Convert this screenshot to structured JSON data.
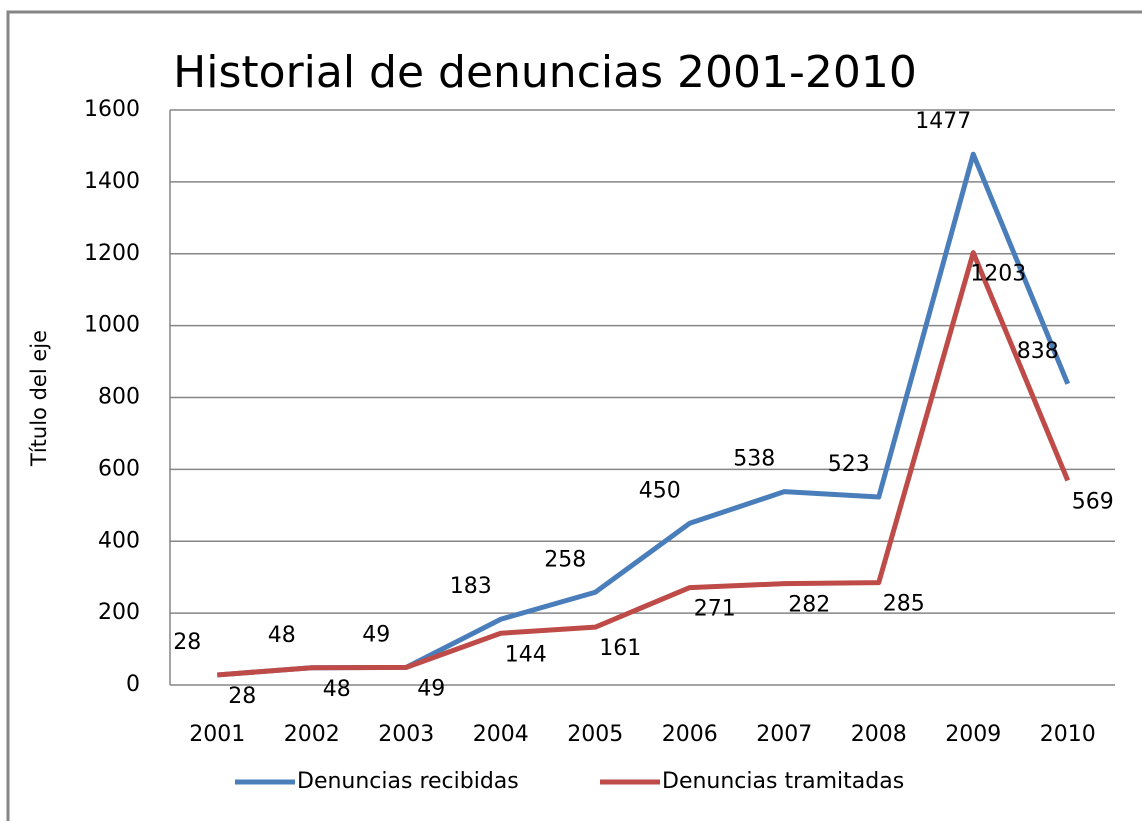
{
  "chart_data": {
    "type": "line",
    "title": "Historial de denuncias 2001-2010",
    "y_label": "Título del eje",
    "categories": [
      "2001",
      "2002",
      "2003",
      "2004",
      "2005",
      "2006",
      "2007",
      "2008",
      "2009",
      "2010"
    ],
    "series": [
      {
        "name": "Denuncias recibidas",
        "color": "#4a7ebb",
        "values": [
          28,
          48,
          49,
          183,
          258,
          450,
          538,
          523,
          1477,
          838
        ]
      },
      {
        "name": "Denuncias tramitadas",
        "color": "#be4b48",
        "values": [
          28,
          48,
          49,
          144,
          161,
          271,
          282,
          285,
          1203,
          569
        ]
      }
    ],
    "ylim": [
      0,
      1600
    ],
    "yticks": [
      0,
      200,
      400,
      600,
      800,
      1000,
      1200,
      1400,
      1600
    ],
    "grid": true,
    "legend": "bottom"
  }
}
